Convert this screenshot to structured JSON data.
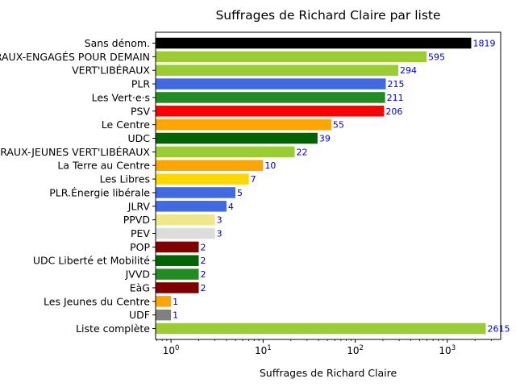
{
  "chart_data": {
    "type": "bar",
    "orientation": "horizontal",
    "title": "Suffrages de Richard Claire par liste",
    "xlabel": "Suffrages de Richard Claire",
    "ylabel": "",
    "xscale": "log",
    "xlim": [
      0.68,
      3800
    ],
    "x_ticks": [
      {
        "value": 1,
        "base": "10",
        "exp": "0"
      },
      {
        "value": 10,
        "base": "10",
        "exp": "1"
      },
      {
        "value": 100,
        "base": "10",
        "exp": "2"
      },
      {
        "value": 1000,
        "base": "10",
        "exp": "3"
      }
    ],
    "grid": false,
    "legend": false,
    "categories": [
      "Sans dénom.",
      "LES VERT'LIBÉRAUX-ENGAGÉS POUR DEMAIN",
      "VERT'LIBÉRAUX",
      "PLR",
      "Les Vert·e·s",
      "PSV",
      "Le Centre",
      "UDC",
      "LES VERT'LIBÉRAUX-JEUNES VERT'LIBÉRAUX",
      "La Terre au Centre",
      "Les Libres",
      "PLR.Énergie libérale",
      "JLRV",
      "PPVD",
      "PEV",
      "POP",
      "UDC Liberté et Mobilité",
      "JVVD",
      "EàG",
      "Les Jeunes du Centre",
      "UDF",
      "Liste complète"
    ],
    "values": [
      1819,
      595,
      294,
      215,
      211,
      206,
      55,
      39,
      22,
      10,
      7,
      5,
      4,
      3,
      3,
      2,
      2,
      2,
      2,
      1,
      1,
      2615
    ],
    "colors": [
      "#000000",
      "#9acd32",
      "#9acd32",
      "#4169e1",
      "#228b22",
      "#ff0000",
      "#ffa500",
      "#006400",
      "#9acd32",
      "#ffa500",
      "#ffd700",
      "#4169e1",
      "#4169e1",
      "#f0e68c",
      "#dcdcdc",
      "#800000",
      "#006400",
      "#228b22",
      "#800000",
      "#ffa500",
      "#808080",
      "#9acd32"
    ],
    "value_label_color": "#0000cc"
  }
}
